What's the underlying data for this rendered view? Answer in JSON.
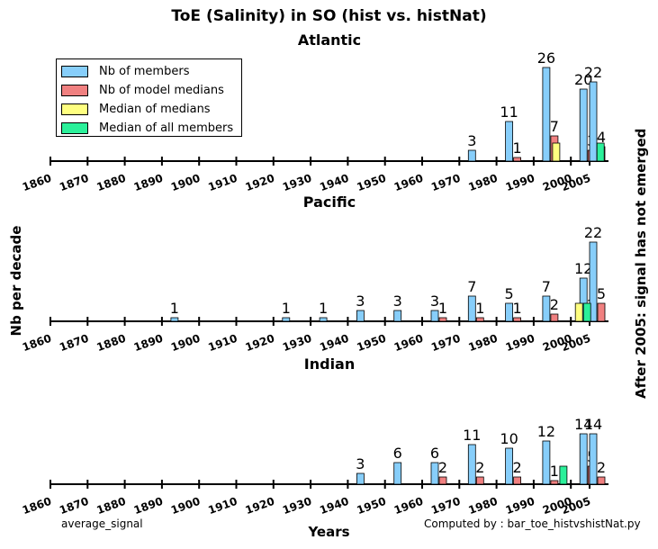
{
  "title": "ToE (Salinity) in SO (hist vs. histNat)",
  "ylabel": "Nb per decade",
  "xlabel": "Years",
  "right_label": "After 2005: signal has not emerged",
  "footnote_left": "average_signal",
  "footnote_right": "Computed by : bar_toe_histvshistNat.py",
  "colors": {
    "members": "#87CEFA",
    "model_medians": "#F08080",
    "median_of_medians": "#FFFF80",
    "median_all_members": "#2BF09A"
  },
  "legend": [
    {
      "label": "Nb of members",
      "color": "#87CEFA"
    },
    {
      "label": "Nb of model medians",
      "color": "#F08080"
    },
    {
      "label": "Median of medians",
      "color": "#FFFF80"
    },
    {
      "label": "Median of all members",
      "color": "#2BF09A"
    }
  ],
  "chart_data": [
    {
      "type": "bar",
      "title": "Atlantic",
      "categories": [
        "1860",
        "1870",
        "1880",
        "1890",
        "1900",
        "1910",
        "1920",
        "1930",
        "1940",
        "1950",
        "1960",
        "1970",
        "1980",
        "1990",
        "2000",
        "2005"
      ],
      "series": [
        {
          "name": "Nb of members",
          "values": [
            0,
            0,
            0,
            0,
            0,
            0,
            0,
            0,
            0,
            0,
            0,
            3,
            11,
            26,
            20,
            22
          ]
        },
        {
          "name": "Nb of model medians",
          "values": [
            0,
            0,
            0,
            0,
            0,
            0,
            0,
            0,
            0,
            0,
            0,
            0,
            1,
            7,
            3,
            4
          ]
        }
      ],
      "median_of_medians_bin": "1990",
      "median_of_all_members_bin": "2000"
    },
    {
      "type": "bar",
      "title": "Pacific",
      "categories": [
        "1860",
        "1870",
        "1880",
        "1890",
        "1900",
        "1910",
        "1920",
        "1930",
        "1940",
        "1950",
        "1960",
        "1970",
        "1980",
        "1990",
        "2000",
        "2005"
      ],
      "series": [
        {
          "name": "Nb of members",
          "values": [
            0,
            0,
            0,
            1,
            0,
            0,
            1,
            1,
            3,
            3,
            3,
            7,
            5,
            7,
            12,
            22
          ]
        },
        {
          "name": "Nb of model medians",
          "values": [
            0,
            0,
            0,
            0,
            0,
            0,
            0,
            0,
            0,
            0,
            1,
            1,
            1,
            2,
            2,
            5
          ]
        }
      ],
      "median_of_medians_bin": "2000",
      "median_of_all_members_bin": "2000"
    },
    {
      "type": "bar",
      "title": "Indian",
      "categories": [
        "1860",
        "1870",
        "1880",
        "1890",
        "1900",
        "1910",
        "1920",
        "1930",
        "1940",
        "1950",
        "1960",
        "1970",
        "1980",
        "1990",
        "2000",
        "2005"
      ],
      "series": [
        {
          "name": "Nb of members",
          "values": [
            0,
            0,
            0,
            0,
            0,
            0,
            0,
            0,
            3,
            6,
            6,
            11,
            10,
            12,
            14,
            14
          ]
        },
        {
          "name": "Nb of model medians",
          "values": [
            0,
            0,
            0,
            0,
            0,
            0,
            0,
            0,
            0,
            0,
            2,
            2,
            2,
            1,
            5,
            2
          ]
        }
      ],
      "median_of_medians_bin": null,
      "median_of_all_members_bin": "1990"
    }
  ]
}
